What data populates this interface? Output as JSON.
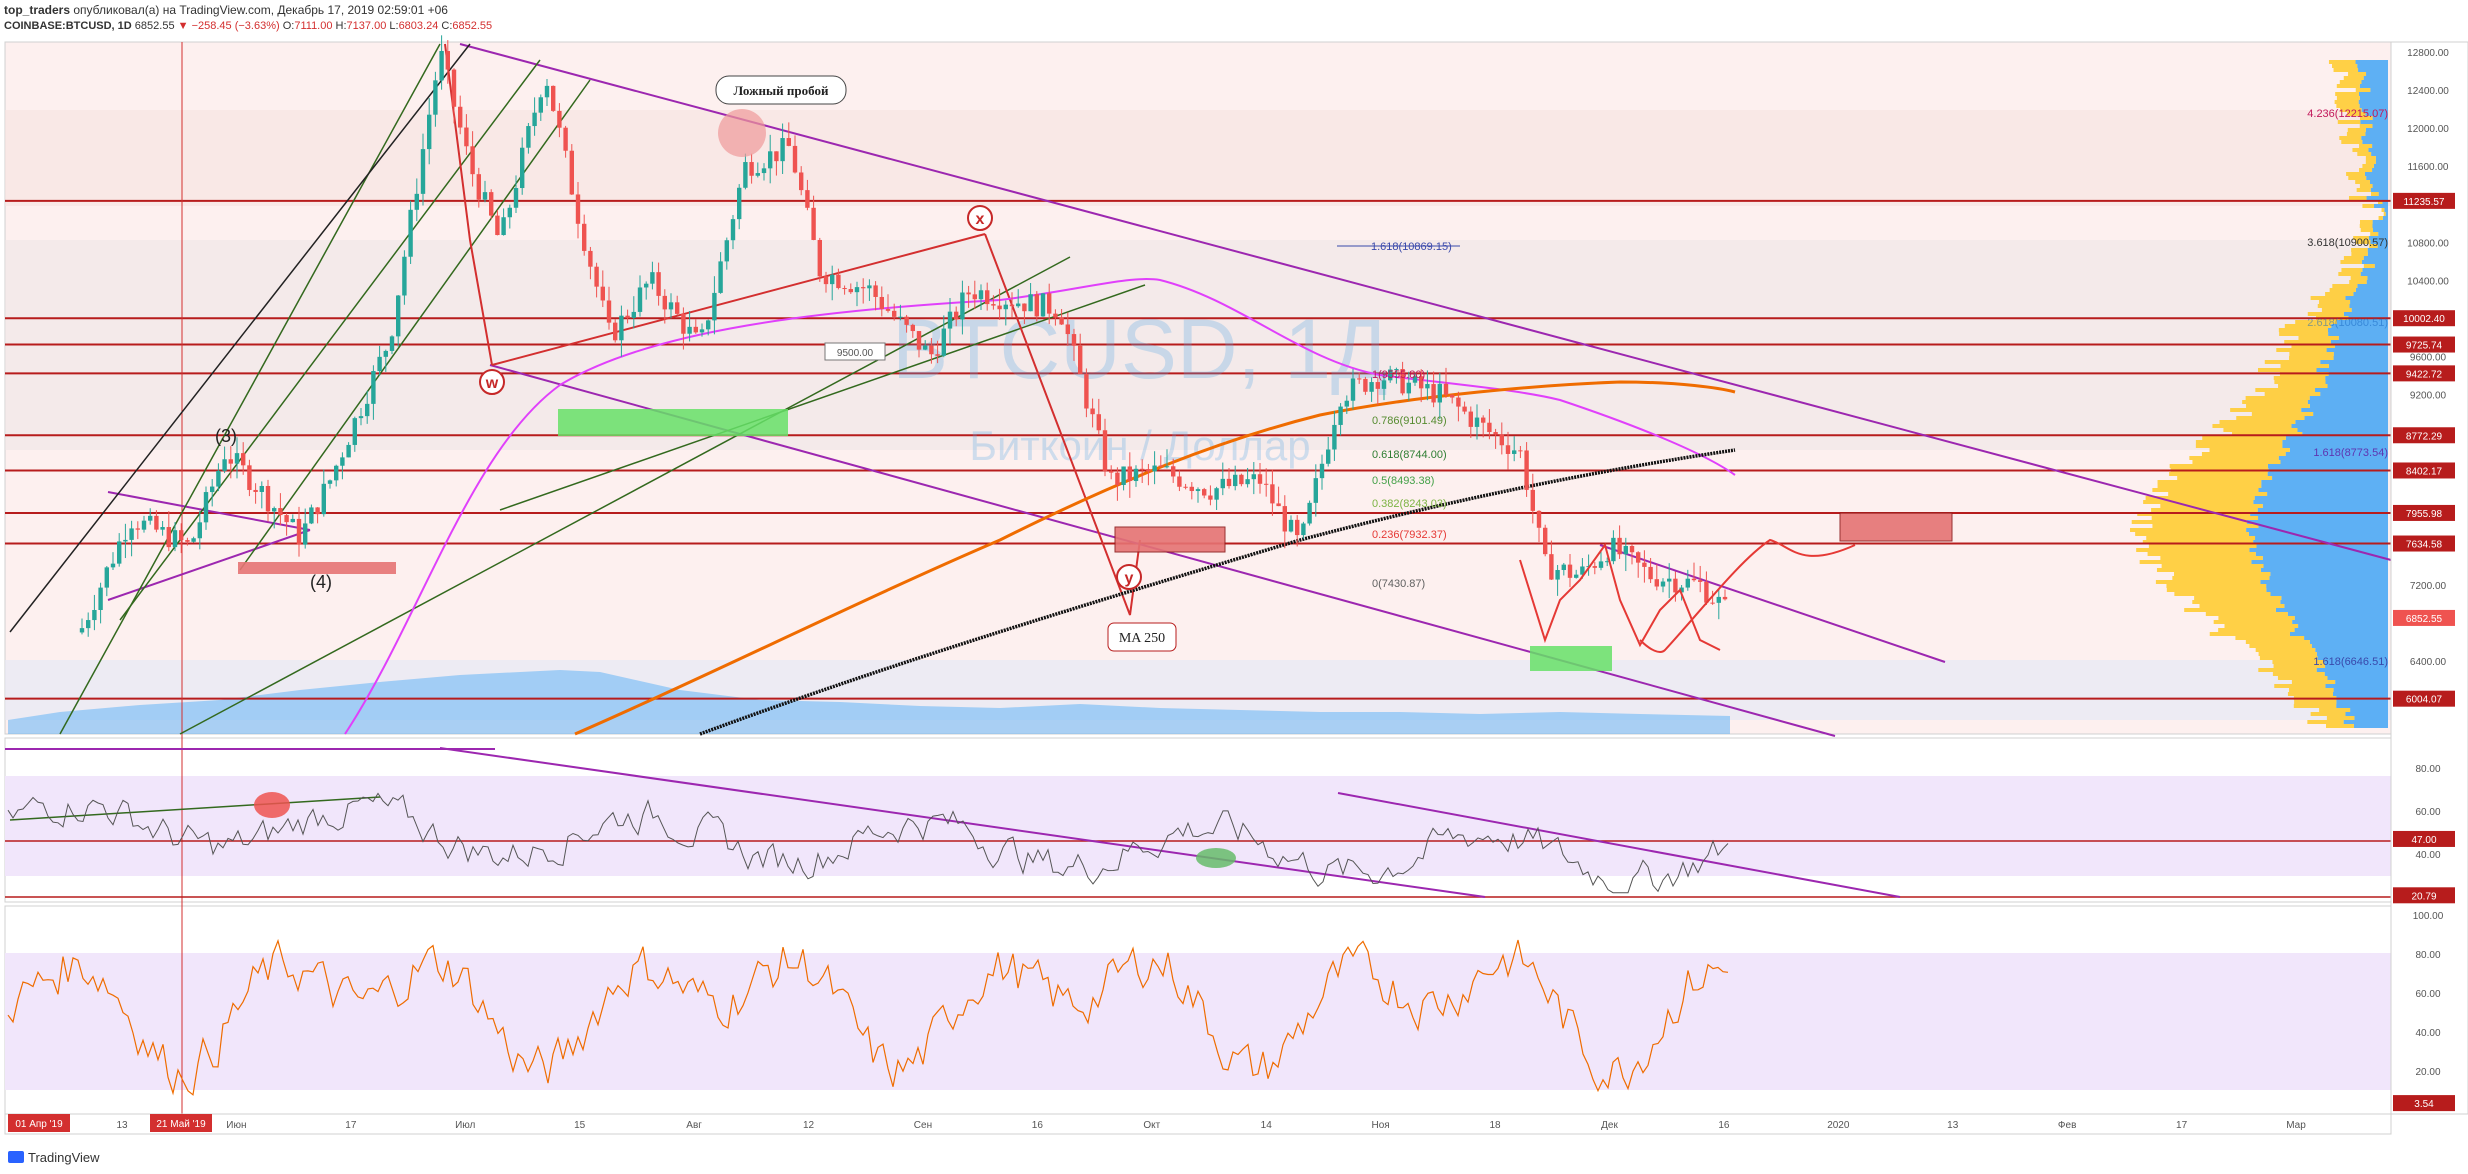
{
  "header": {
    "author": "top_traders",
    "published": "опубликовал(а) на TradingView.com, Декабрь 17, 2019 02:59:01 +06",
    "symbol": "COINBASE:BTCUSD, 1D",
    "last": "6852.55",
    "change": "−258.45 (−3.63%)",
    "o_label": "O:",
    "o": "7111.00",
    "h_label": "H:",
    "h": "7137.00",
    "l_label": "L:",
    "l": "6803.24",
    "c_label": "C:",
    "c": "6852.55"
  },
  "watermark": {
    "line1": "BTCUSD, 1Д",
    "line2": "Биткоин / Доллар"
  },
  "colors": {
    "up": "#26a69a",
    "down": "#ef5350",
    "level": "#b71c1c",
    "channel": "#9c27b0",
    "ma": "#ef6c00",
    "ma250": "#111111",
    "rsi": "#7e57c2",
    "stoch": "#ef6c00",
    "accent_blue": "#2962ff"
  },
  "annotations": {
    "false_breakout": "Ложный пробой",
    "ma250": "MA 250",
    "wave_w": "w",
    "wave_x": "x",
    "wave_y": "y",
    "wave_3": "(3)",
    "wave_4": "(4)",
    "price_box": "9500.00"
  },
  "fib": {
    "f1618_top": "1.618(10869.15)",
    "levels": [
      "1(9555.80)",
      "0.786(9101.49)",
      "0.618(8744.00)",
      "0.5(8493.38)",
      "0.382(8243.03)",
      "0.236(7932.37)",
      "0(7430.87)"
    ],
    "right_4236": "4.236(12215.07)",
    "right_3618": "3.618(10900.57)",
    "right_2618": "2.618(10080.51)",
    "right_1618mid": "1.618(8773.54)",
    "right_1618low": "1.618(6646.51)"
  },
  "price_axis": {
    "ticks": [
      "12800.00",
      "12400.00",
      "12000.00",
      "11600.00",
      "10800.00",
      "10400.00",
      "9600.00",
      "9200.00",
      "8800.00",
      "7200.00",
      "6400.00"
    ],
    "tags": [
      {
        "text": "11235.57",
        "color": "#b71c1c"
      },
      {
        "text": "10002.40",
        "color": "#b71c1c"
      },
      {
        "text": "9725.74",
        "color": "#b71c1c"
      },
      {
        "text": "9422.72",
        "color": "#b71c1c"
      },
      {
        "text": "8772.29",
        "color": "#b71c1c"
      },
      {
        "text": "8402.17",
        "color": "#b71c1c"
      },
      {
        "text": "7955.98",
        "color": "#b71c1c"
      },
      {
        "text": "7634.58",
        "color": "#b71c1c"
      },
      {
        "text": "6852.55",
        "color": "#ef5350"
      },
      {
        "text": "6004.07",
        "color": "#b71c1c"
      }
    ]
  },
  "rsi_axis": {
    "ticks": [
      "80.00",
      "60.00",
      "40.00"
    ],
    "tags": [
      {
        "text": "47.00",
        "color": "#b71c1c"
      },
      {
        "text": "20.79",
        "color": "#b71c1c"
      }
    ]
  },
  "stoch_axis": {
    "ticks": [
      "100.00",
      "80.00",
      "60.00",
      "40.00",
      "20.00"
    ],
    "tags": [
      {
        "text": "3.54",
        "color": "#b71c1c"
      }
    ]
  },
  "time_axis": {
    "labels": [
      "13",
      "Июн",
      "17",
      "Июл",
      "15",
      "Авг",
      "12",
      "Сен",
      "16",
      "Окт",
      "14",
      "Ноя",
      "18",
      "Дек",
      "16",
      "2020",
      "13",
      "Фев",
      "17",
      "Мар"
    ],
    "start_tag": "01 Апр '19",
    "cursor_tag": "21 Май '19"
  },
  "chart_data": {
    "type": "candlestick",
    "title": "COINBASE:BTCUSD, 1D",
    "x_range": [
      "01 Апр '19",
      "Мар 2020"
    ],
    "ylim": [
      6000,
      13000
    ],
    "key_points": [
      {
        "label": "w",
        "price": 9500
      },
      {
        "label": "x",
        "price": 10900
      },
      {
        "label": "y",
        "price": 7700
      },
      {
        "label": "peak",
        "price": 13200
      },
      {
        "label": "last",
        "price": 6852.55
      }
    ],
    "horizontal_levels": [
      11235.57,
      10002.4,
      9725.74,
      9422.72,
      8772.29,
      8402.17,
      7955.98,
      7634.58,
      6004.07
    ],
    "indicators": [
      "RSI",
      "Stochastic RSI",
      "MA",
      "MA 250",
      "Volume",
      "Volume Profile"
    ],
    "rsi_levels": [
      47.0,
      20.79
    ],
    "stoch_last": 3.54,
    "grid": false,
    "legend": "none"
  },
  "footer": {
    "brand": "TradingView"
  }
}
